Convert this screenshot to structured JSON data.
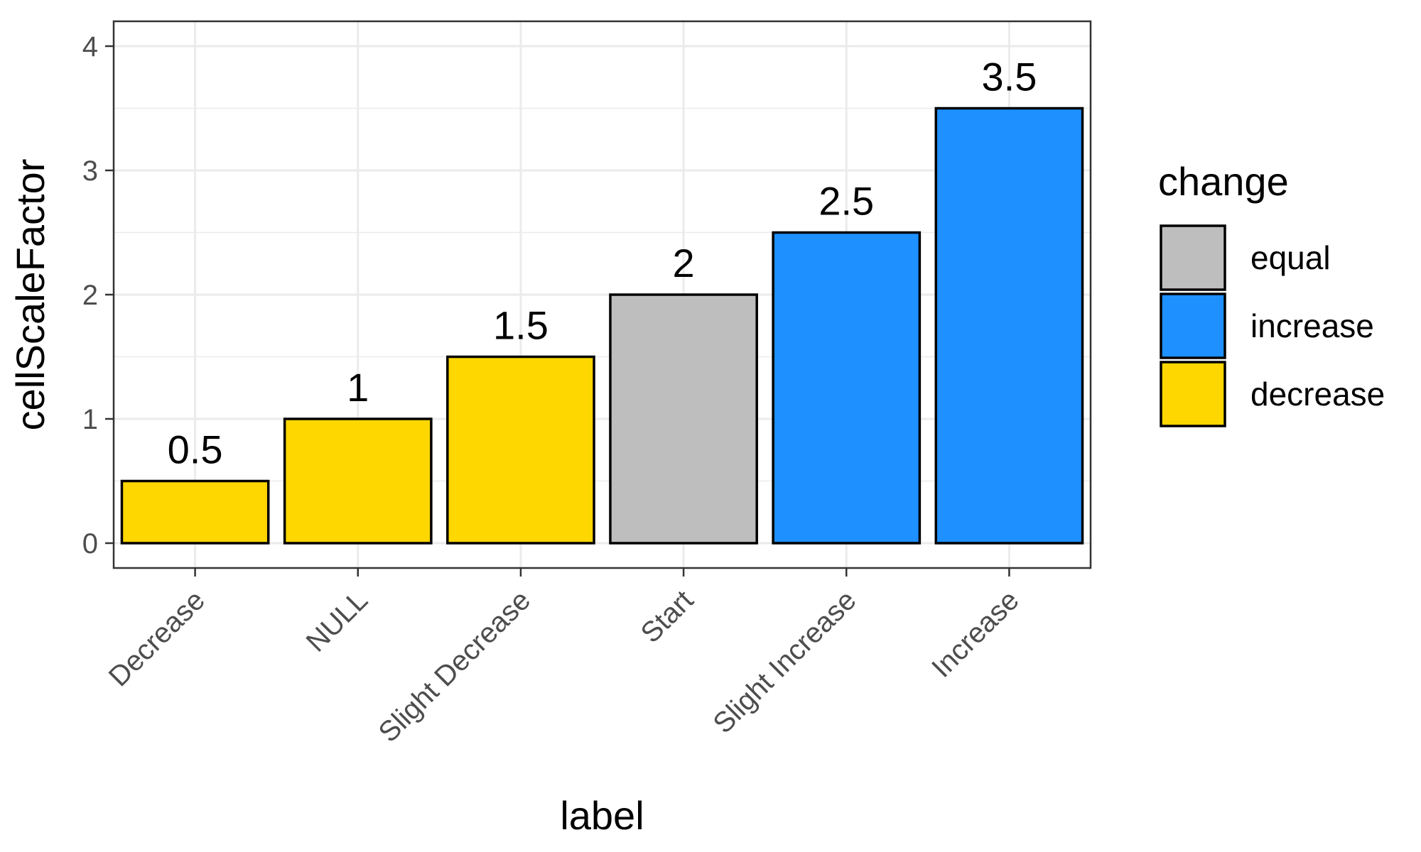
{
  "chart_data": {
    "type": "bar",
    "title": "",
    "xlabel": "label",
    "ylabel": "cellScaleFactor",
    "ylim": [
      -0.2,
      4.2
    ],
    "yticks": [
      "0",
      "1",
      "2",
      "3",
      "4"
    ],
    "grid": true,
    "categories": [
      "Decrease",
      "NULL",
      "Slight Decrease",
      "Start",
      "Slight Increase",
      "Increase"
    ],
    "values": [
      0.5,
      1,
      1.5,
      2,
      2.5,
      3.5
    ],
    "value_labels": [
      "0.5",
      "1",
      "1.5",
      "2",
      "2.5",
      "3.5"
    ],
    "fill_group": [
      "decrease",
      "decrease",
      "decrease",
      "equal",
      "increase",
      "increase"
    ],
    "legend": {
      "title": "change",
      "position": "right",
      "items": [
        {
          "label": "equal",
          "color": "#BEBEBE"
        },
        {
          "label": "increase",
          "color": "#1E90FF"
        },
        {
          "label": "decrease",
          "color": "#FFD700"
        }
      ]
    }
  }
}
